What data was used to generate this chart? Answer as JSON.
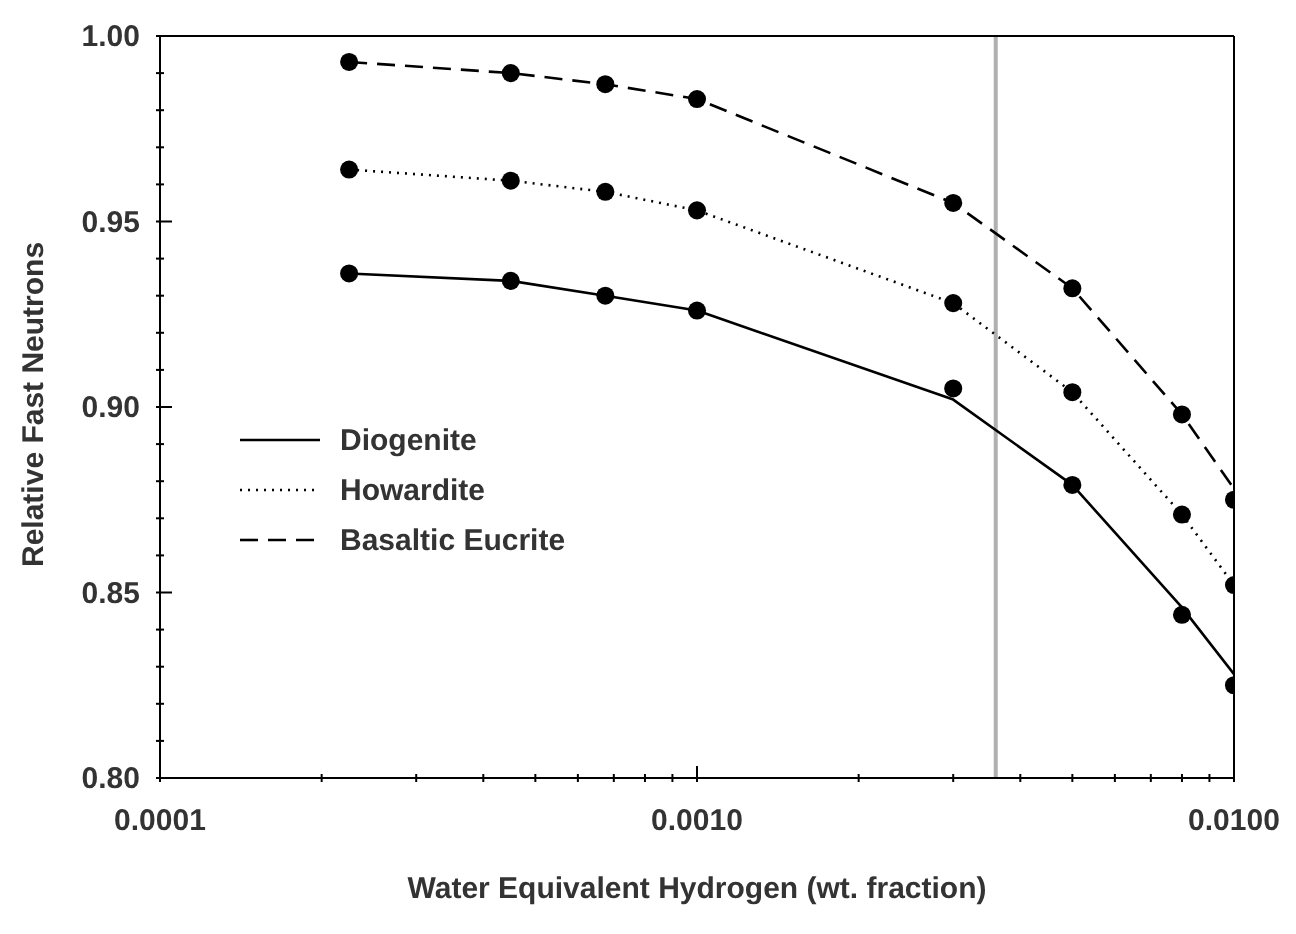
{
  "chart_data": {
    "type": "line",
    "xlabel": "Water Equivalent Hydrogen (wt. fraction)",
    "ylabel": "Relative Fast Neutrons",
    "log": "x",
    "grid": false,
    "legend": "center left",
    "x": [
      0.000225,
      0.00045,
      0.000675,
      0.001,
      0.003,
      0.005,
      0.008,
      0.01
    ],
    "xlim": [
      0.0001,
      0.01
    ],
    "xticks": [
      {
        "value": 0.0001,
        "label": "0.0001"
      },
      {
        "value": 0.0002,
        "label": null
      },
      {
        "value": 0.0003,
        "label": null
      },
      {
        "value": 0.0004,
        "label": null
      },
      {
        "value": 0.0005,
        "label": null
      },
      {
        "value": 0.0006,
        "label": null
      },
      {
        "value": 0.0007,
        "label": null
      },
      {
        "value": 0.0008,
        "label": null
      },
      {
        "value": 0.0009,
        "label": null
      },
      {
        "value": 0.001,
        "label": "0.0010"
      },
      {
        "value": 0.002,
        "label": null
      },
      {
        "value": 0.003,
        "label": null
      },
      {
        "value": 0.004,
        "label": null
      },
      {
        "value": 0.005,
        "label": null
      },
      {
        "value": 0.006,
        "label": null
      },
      {
        "value": 0.007,
        "label": null
      },
      {
        "value": 0.008,
        "label": null
      },
      {
        "value": 0.009,
        "label": null
      },
      {
        "value": 0.01,
        "label": "0.0100"
      }
    ],
    "ylim": [
      0.8,
      1.0
    ],
    "yticks": [
      {
        "value": 0.8,
        "label": "0.80"
      },
      {
        "value": 0.81,
        "label": null
      },
      {
        "value": 0.82,
        "label": null
      },
      {
        "value": 0.83,
        "label": null
      },
      {
        "value": 0.84,
        "label": null
      },
      {
        "value": 0.85,
        "label": "0.85"
      },
      {
        "value": 0.86,
        "label": null
      },
      {
        "value": 0.87,
        "label": null
      },
      {
        "value": 0.88,
        "label": null
      },
      {
        "value": 0.89,
        "label": null
      },
      {
        "value": 0.9,
        "label": "0.90"
      },
      {
        "value": 0.91,
        "label": null
      },
      {
        "value": 0.92,
        "label": null
      },
      {
        "value": 0.93,
        "label": null
      },
      {
        "value": 0.94,
        "label": null
      },
      {
        "value": 0.95,
        "label": "0.95"
      },
      {
        "value": 0.96,
        "label": null
      },
      {
        "value": 0.97,
        "label": null
      },
      {
        "value": 0.98,
        "label": null
      },
      {
        "value": 0.99,
        "label": null
      },
      {
        "value": 1.0,
        "label": "1.00"
      }
    ],
    "ref_lines": [
      {
        "axis": "x",
        "value": 0.0036,
        "label": null,
        "color": "#b0b0b0",
        "line_style": "solid"
      }
    ],
    "series": [
      {
        "name": "Diogenite",
        "type": "line",
        "line_style": "solid",
        "marker": "none",
        "color": "#000000",
        "values": [
          0.936,
          0.934,
          0.93,
          0.926,
          0.902,
          0.879,
          0.846,
          0.828
        ]
      },
      {
        "type": "scatter",
        "marker": "circle",
        "color": "#000000",
        "values": [
          0.936,
          0.934,
          0.93,
          0.926,
          0.905,
          0.879,
          0.844,
          0.825
        ]
      },
      {
        "name": "Howardite",
        "type": "line",
        "line_style": "dotted",
        "marker": "none",
        "color": "#000000",
        "values": [
          0.964,
          0.961,
          0.958,
          0.953,
          0.928,
          0.904,
          0.871,
          0.852
        ]
      },
      {
        "type": "scatter",
        "marker": "circle",
        "color": "#000000",
        "values": [
          0.964,
          0.961,
          0.958,
          0.953,
          0.928,
          0.904,
          0.871,
          0.852
        ]
      },
      {
        "name": "Basaltic Eucrite",
        "type": "line",
        "line_style": "dashed",
        "marker": "none",
        "color": "#000000",
        "values": [
          0.993,
          0.99,
          0.987,
          0.983,
          0.955,
          0.932,
          0.898,
          0.878
        ]
      },
      {
        "type": "scatter",
        "marker": "circle",
        "color": "#000000",
        "values": [
          0.993,
          0.99,
          0.987,
          0.983,
          0.955,
          0.932,
          0.898,
          0.875
        ]
      }
    ]
  }
}
